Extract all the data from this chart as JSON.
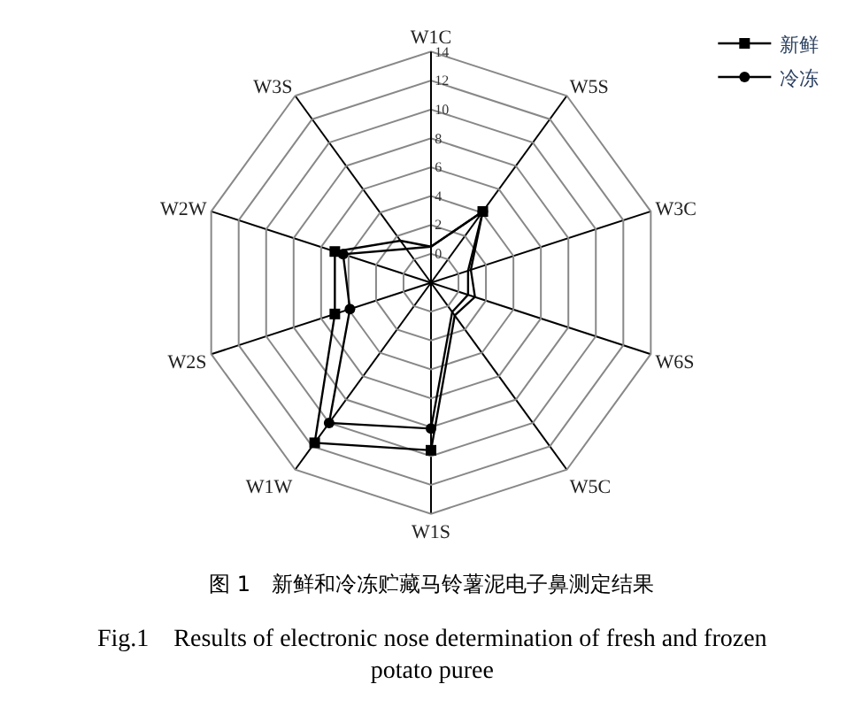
{
  "chart_data": {
    "type": "radar",
    "categories": [
      "W1C",
      "W5S",
      "W3C",
      "W6S",
      "W5C",
      "W1S",
      "W1W",
      "W2S",
      "W2W",
      "W3S"
    ],
    "series": [
      {
        "name": "新鲜",
        "color": "#000000",
        "marker": "square",
        "values": [
          0.5,
          4.1,
          0.9,
          1.2,
          0.8,
          9.6,
          11.7,
          5.0,
          5.0,
          1.6
        ]
      },
      {
        "name": "冷冻",
        "color": "#000000",
        "marker": "circle",
        "values": [
          0.5,
          4.1,
          0.7,
          0.7,
          0.5,
          8.1,
          10.0,
          3.9,
          4.4,
          0.9
        ]
      }
    ],
    "ylim": [
      -2,
      14
    ],
    "yticks": [
      0,
      2,
      4,
      6,
      8,
      10,
      12,
      14
    ],
    "grid": true,
    "legend": "top right",
    "annotations": [
      "图 1　新鲜和冷冻贮藏马铃薯泥电子鼻测定结果",
      "Fig.1　Results of electronic nose determination of fresh and frozen\npotato puree"
    ]
  }
}
